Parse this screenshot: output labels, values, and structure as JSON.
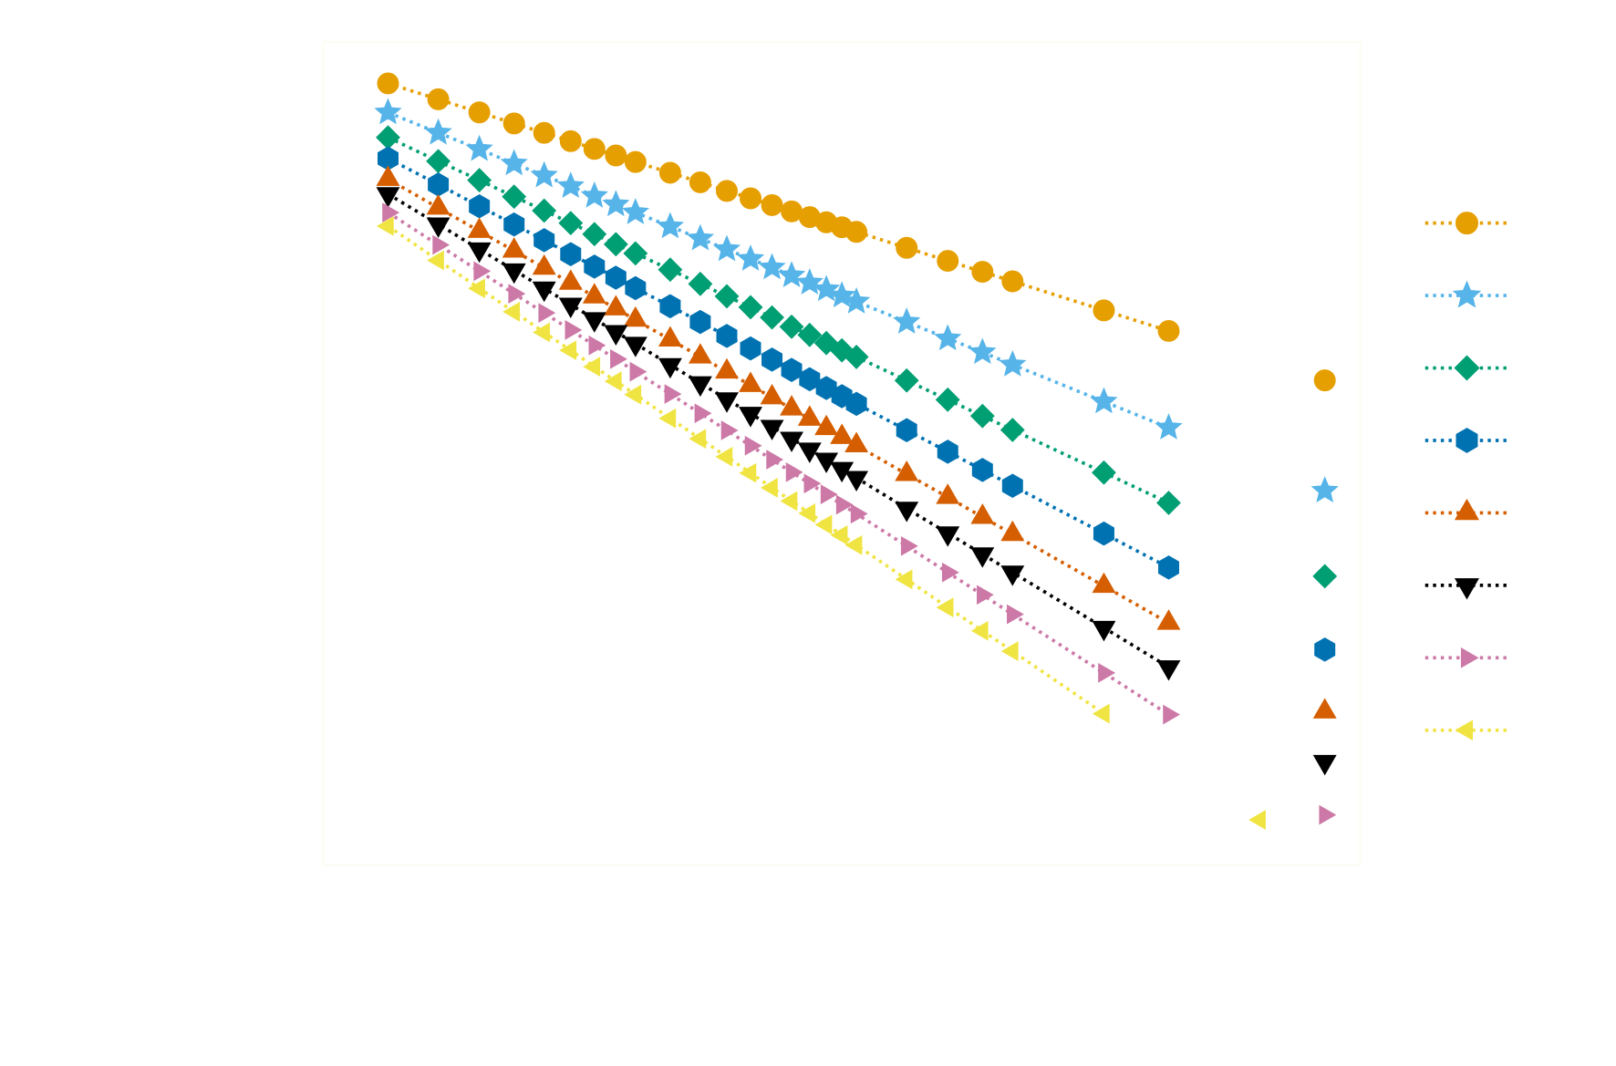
{
  "chart_data": {
    "type": "line",
    "x": [
      4,
      5,
      6,
      7,
      8,
      9,
      10,
      11,
      12,
      14,
      16,
      18,
      20,
      22,
      24,
      26,
      28,
      30,
      32,
      40,
      48,
      56,
      64,
      96,
      128,
      192,
      256
    ],
    "xlim": [
      3,
      300
    ],
    "ylim": [
      7.9e-06,
      1
    ],
    "xscale": "log",
    "yscale": "log",
    "grid": false,
    "legend": "right",
    "series": [
      {
        "color": "#e69f00",
        "marker": "circle",
        "values": [
          0.541,
          0.428,
          0.353,
          0.3,
          0.261,
          0.231,
          0.206,
          0.187,
          0.17,
          0.145,
          0.126,
          0.111,
          0.0995,
          0.09,
          0.0821,
          0.0755,
          0.0699,
          0.065,
          0.0607,
          0.048,
          0.0396,
          0.0337,
          0.0293,
          0.0191,
          0.0141,
          null,
          0.00681
        ]
      },
      {
        "color": "#56b4e9",
        "marker": "star",
        "values": [
          0.352,
          0.261,
          0.205,
          0.166,
          0.139,
          0.119,
          0.103,
          0.0908,
          0.0808,
          0.0657,
          0.055,
          0.0469,
          0.0407,
          0.0359,
          0.0319,
          0.0287,
          0.026,
          0.0237,
          0.0217,
          0.0161,
          0.0126,
          0.0103,
          0.00858,
          0.00498,
          0.00339,
          null,
          0.00134
        ]
      },
      {
        "color": "#009e73",
        "marker": "diamond",
        "values": [
          0.244,
          0.172,
          0.13,
          0.102,
          0.083,
          0.0691,
          0.0587,
          0.0506,
          0.0442,
          0.0348,
          0.0282,
          0.0235,
          0.02,
          0.0172,
          0.015,
          0.0133,
          0.0118,
          0.0106,
          0.00962,
          0.0068,
          0.00512,
          0.00403,
          0.00328,
          0.00175,
          0.00112,
          null,
          0.00038
        ]
      },
      {
        "color": "#0072b2",
        "marker": "hexagon",
        "values": [
          0.179,
          0.122,
          0.0885,
          0.0677,
          0.0537,
          0.0437,
          0.0364,
          0.0309,
          0.0265,
          0.0203,
          0.0161,
          0.0131,
          0.0109,
          0.00924,
          0.00794,
          0.00692,
          0.00608,
          0.00539,
          0.00482,
          0.00327,
          0.00238,
          0.00182,
          0.00144,
          0.000713,
          0.000432,
          null,
          0.000129
        ]
      },
      {
        "color": "#d55e00",
        "marker": "triangle-up",
        "values": [
          0.132,
          0.0865,
          0.0614,
          0.0459,
          0.0357,
          0.0286,
          0.0234,
          0.0196,
          0.0166,
          0.0124,
          0.00965,
          0.00773,
          0.00634,
          0.00529,
          0.00449,
          0.00386,
          0.00336,
          0.00295,
          0.00261,
          0.00171,
          0.00122,
          0.000909,
          0.000707,
          0.000329,
          0.000191,
          null,
          5.17e-05
        ]
      },
      {
        "color": "#000000",
        "marker": "triangle-down",
        "values": [
          0.106,
          0.0679,
          0.047,
          0.0345,
          0.0264,
          0.0208,
          0.0168,
          0.0139,
          0.0117,
          0.00855,
          0.00654,
          0.00516,
          0.00417,
          0.00344,
          0.00289,
          0.00246,
          0.00212,
          0.00185,
          0.00162,
          0.00103,
          0.000717,
          0.000526,
          0.000402,
          0.000178,
          9.96e-05,
          null,
          2.47e-05
        ]
      },
      {
        "color": "#cc79a7",
        "marker": "triangle-right",
        "values": [
          0.0807,
          0.0501,
          0.034,
          0.0244,
          0.0184,
          0.0143,
          0.0114,
          0.00932,
          0.00774,
          0.00557,
          0.00419,
          0.00326,
          0.0026,
          0.00212,
          0.00176,
          0.00149,
          0.00127,
          0.00109,
          0.000954,
          0.000593,
          0.000402,
          0.000289,
          0.000217,
          9.15e-05,
          4.95e-05,
          null,
          1.13e-05
        ]
      },
      {
        "color": "#f0e442",
        "marker": "triangle-left",
        "values": [
          0.0661,
          0.0399,
          0.0264,
          0.0187,
          0.0138,
          0.0106,
          0.00833,
          0.00672,
          0.00552,
          0.00389,
          0.00288,
          0.00221,
          0.00174,
          0.0014,
          0.00115,
          0.000961,
          0.000813,
          0.000696,
          0.000601,
          0.000363,
          0.00024,
          0.00017,
          0.000126,
          5.02e-05,
          null,
          1.05e-05,
          null
        ]
      }
    ]
  }
}
